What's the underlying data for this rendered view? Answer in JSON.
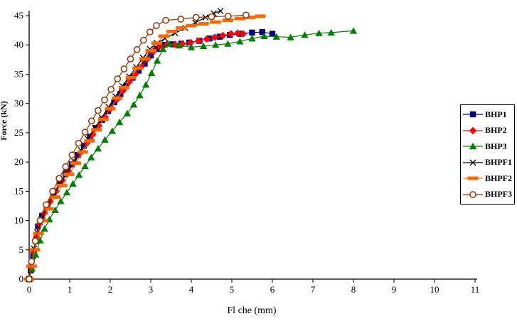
{
  "chart_data": {
    "type": "line",
    "title": "",
    "xlabel": "Fl che (mm)",
    "ylabel": "Force (kN)",
    "xlim": [
      0,
      11
    ],
    "ylim": [
      0,
      45
    ],
    "xticks": [
      0,
      1,
      2,
      3,
      4,
      5,
      6,
      7,
      8,
      9,
      10,
      11
    ],
    "yticks": [
      0,
      5,
      10,
      15,
      20,
      25,
      30,
      35,
      40,
      45
    ],
    "grid": false,
    "legend_position": "right",
    "series": [
      {
        "name": "BHP1",
        "color": "#000080",
        "marker": "square",
        "points": [
          [
            0,
            0
          ],
          [
            0.04,
            1.5
          ],
          [
            0.1,
            4
          ],
          [
            0.16,
            6.5
          ],
          [
            0.22,
            9
          ],
          [
            0.32,
            10.8
          ],
          [
            0.45,
            12.5
          ],
          [
            0.6,
            14.5
          ],
          [
            0.75,
            16.3
          ],
          [
            0.9,
            18
          ],
          [
            1.05,
            19.6
          ],
          [
            1.2,
            21.2
          ],
          [
            1.35,
            22.8
          ],
          [
            1.5,
            24.3
          ],
          [
            1.65,
            25.8
          ],
          [
            1.8,
            27.2
          ],
          [
            1.95,
            28.7
          ],
          [
            2.1,
            30.2
          ],
          [
            2.25,
            31.6
          ],
          [
            2.4,
            33
          ],
          [
            2.55,
            34.4
          ],
          [
            2.7,
            35.6
          ],
          [
            2.85,
            36.8
          ],
          [
            3.0,
            38.2
          ],
          [
            3.15,
            39.3
          ],
          [
            3.3,
            40
          ],
          [
            3.55,
            40.1
          ],
          [
            3.75,
            40.2
          ],
          [
            3.95,
            40.4
          ],
          [
            4.2,
            40.7
          ],
          [
            4.45,
            41.1
          ],
          [
            4.7,
            41.4
          ],
          [
            4.95,
            41.7
          ],
          [
            5.2,
            41.9
          ],
          [
            5.5,
            42.1
          ],
          [
            5.75,
            42.2
          ],
          [
            6.0,
            41.9
          ]
        ]
      },
      {
        "name": "BHP2",
        "color": "#FF0000",
        "marker": "diamond",
        "points": [
          [
            0,
            0
          ],
          [
            0.05,
            2
          ],
          [
            0.11,
            4.6
          ],
          [
            0.18,
            7.2
          ],
          [
            0.26,
            9.4
          ],
          [
            0.38,
            11.3
          ],
          [
            0.52,
            13.2
          ],
          [
            0.67,
            15
          ],
          [
            0.82,
            16.8
          ],
          [
            0.97,
            18.4
          ],
          [
            1.12,
            20
          ],
          [
            1.27,
            21.6
          ],
          [
            1.42,
            23.2
          ],
          [
            1.57,
            24.7
          ],
          [
            1.72,
            26.2
          ],
          [
            1.87,
            27.7
          ],
          [
            2.02,
            29.2
          ],
          [
            2.17,
            30.7
          ],
          [
            2.32,
            32.2
          ],
          [
            2.47,
            33.7
          ],
          [
            2.62,
            35
          ],
          [
            2.77,
            36.3
          ],
          [
            2.92,
            37.6
          ],
          [
            3.07,
            38.9
          ],
          [
            3.22,
            39.8
          ],
          [
            3.4,
            40.1
          ],
          [
            3.6,
            40.1
          ],
          [
            3.78,
            40.2
          ],
          [
            3.98,
            40.4
          ],
          [
            4.18,
            40.7
          ],
          [
            4.38,
            41
          ],
          [
            4.58,
            41.3
          ],
          [
            4.78,
            41.6
          ],
          [
            4.98,
            41.9
          ],
          [
            5.14,
            42
          ],
          [
            5.28,
            41.9
          ]
        ]
      },
      {
        "name": "BHP3",
        "color": "#008000",
        "marker": "triangle",
        "points": [
          [
            0,
            0
          ],
          [
            0.07,
            1.8
          ],
          [
            0.16,
            4.2
          ],
          [
            0.27,
            6.6
          ],
          [
            0.38,
            8.6
          ],
          [
            0.5,
            10.2
          ],
          [
            0.64,
            11.8
          ],
          [
            0.78,
            13.3
          ],
          [
            0.93,
            14.8
          ],
          [
            1.08,
            16.3
          ],
          [
            1.23,
            17.8
          ],
          [
            1.38,
            19.3
          ],
          [
            1.53,
            20.8
          ],
          [
            1.7,
            22.3
          ],
          [
            1.87,
            23.8
          ],
          [
            2.05,
            25.3
          ],
          [
            2.23,
            26.8
          ],
          [
            2.42,
            28.3
          ],
          [
            2.58,
            29.8
          ],
          [
            2.73,
            31.4
          ],
          [
            2.88,
            33.2
          ],
          [
            3.02,
            35.2
          ],
          [
            3.16,
            37.3
          ],
          [
            3.3,
            39.3
          ],
          [
            3.45,
            40.2
          ],
          [
            3.7,
            39.9
          ],
          [
            4.0,
            39.6
          ],
          [
            4.3,
            39.8
          ],
          [
            4.6,
            40
          ],
          [
            4.9,
            40.2
          ],
          [
            5.2,
            40.6
          ],
          [
            5.5,
            41.1
          ],
          [
            5.8,
            41.5
          ],
          [
            6.1,
            41.4
          ],
          [
            6.45,
            41.3
          ],
          [
            6.8,
            41.7
          ],
          [
            7.15,
            42
          ],
          [
            7.45,
            42.1
          ],
          [
            8.0,
            42.4
          ]
        ]
      },
      {
        "name": "BHPF1",
        "color": "#000000",
        "marker": "x",
        "points": [
          [
            0,
            0
          ],
          [
            0.05,
            2.4
          ],
          [
            0.12,
            5.2
          ],
          [
            0.2,
            8
          ],
          [
            0.3,
            10.2
          ],
          [
            0.44,
            12.2
          ],
          [
            0.6,
            14.3
          ],
          [
            0.77,
            16.3
          ],
          [
            0.94,
            18.2
          ],
          [
            1.11,
            20.1
          ],
          [
            1.28,
            22
          ],
          [
            1.45,
            23.9
          ],
          [
            1.62,
            25.8
          ],
          [
            1.79,
            27.6
          ],
          [
            1.96,
            29.4
          ],
          [
            2.13,
            31.2
          ],
          [
            2.3,
            33
          ],
          [
            2.47,
            34.6
          ],
          [
            2.64,
            36.2
          ],
          [
            2.81,
            37.8
          ],
          [
            2.98,
            39.3
          ],
          [
            3.15,
            40.3
          ],
          [
            3.35,
            41.1
          ],
          [
            3.6,
            42
          ],
          [
            3.85,
            42.9
          ],
          [
            4.1,
            43.8
          ],
          [
            4.35,
            44.7
          ],
          [
            4.55,
            45.4
          ],
          [
            4.72,
            45.8
          ]
        ]
      },
      {
        "name": "BHPF2",
        "color": "#FF6600",
        "marker": "dash",
        "points": [
          [
            0,
            0
          ],
          [
            0.06,
            2.2
          ],
          [
            0.14,
            5
          ],
          [
            0.23,
            7.8
          ],
          [
            0.34,
            10
          ],
          [
            0.48,
            12
          ],
          [
            0.64,
            14
          ],
          [
            0.81,
            16
          ],
          [
            0.98,
            17.9
          ],
          [
            1.15,
            19.8
          ],
          [
            1.32,
            21.7
          ],
          [
            1.49,
            23.6
          ],
          [
            1.66,
            25.5
          ],
          [
            1.83,
            27.3
          ],
          [
            2.0,
            29.1
          ],
          [
            2.17,
            30.9
          ],
          [
            2.34,
            32.7
          ],
          [
            2.51,
            34.4
          ],
          [
            2.68,
            36
          ],
          [
            2.85,
            37.6
          ],
          [
            3.0,
            39
          ],
          [
            3.15,
            40.3
          ],
          [
            3.32,
            41.5
          ],
          [
            3.52,
            42.3
          ],
          [
            3.75,
            42.9
          ],
          [
            4.0,
            43.3
          ],
          [
            4.3,
            43.6
          ],
          [
            4.6,
            43.9
          ],
          [
            4.9,
            44.2
          ],
          [
            5.2,
            44.5
          ],
          [
            5.45,
            44.7
          ],
          [
            5.7,
            44.9
          ]
        ]
      },
      {
        "name": "BHPF3",
        "color": "#993300",
        "marker": "circle-open",
        "points": [
          [
            0,
            0
          ],
          [
            0.06,
            3
          ],
          [
            0.15,
            6.5
          ],
          [
            0.27,
            10
          ],
          [
            0.42,
            12.7
          ],
          [
            0.58,
            15
          ],
          [
            0.74,
            17.2
          ],
          [
            0.9,
            19.2
          ],
          [
            1.06,
            21.2
          ],
          [
            1.22,
            23.2
          ],
          [
            1.38,
            25.1
          ],
          [
            1.54,
            27
          ],
          [
            1.7,
            28.8
          ],
          [
            1.86,
            30.6
          ],
          [
            2.02,
            32.4
          ],
          [
            2.18,
            34.2
          ],
          [
            2.34,
            35.9
          ],
          [
            2.5,
            37.6
          ],
          [
            2.66,
            39.2
          ],
          [
            2.82,
            40.8
          ],
          [
            2.98,
            42.2
          ],
          [
            3.14,
            43.3
          ],
          [
            3.37,
            44.2
          ],
          [
            3.74,
            44.4
          ],
          [
            4.12,
            44.7
          ],
          [
            4.5,
            44.8
          ],
          [
            4.91,
            44.9
          ],
          [
            5.35,
            45.1
          ]
        ]
      }
    ]
  }
}
